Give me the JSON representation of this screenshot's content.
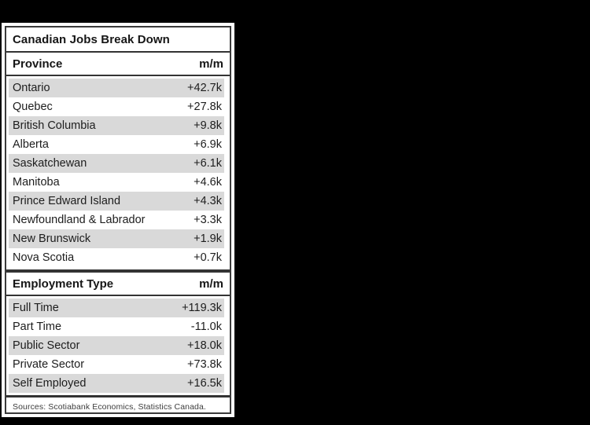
{
  "colors": {
    "page_bg": "#000000",
    "card_bg": "#ffffff",
    "border_and_rules": "#333333",
    "row_shade": "#d9d9d9",
    "text": "#1d1d1d",
    "source_text": "#3d3d3d"
  },
  "table": {
    "title": "Canadian Jobs Break Down",
    "sections": [
      {
        "header": {
          "label": "Province",
          "unit": "m/m"
        },
        "rows": [
          {
            "label": "Ontario",
            "value": "+42.7k"
          },
          {
            "label": "Quebec",
            "value": "+27.8k"
          },
          {
            "label": "British Columbia",
            "value": "+9.8k"
          },
          {
            "label": "Alberta",
            "value": "+6.9k"
          },
          {
            "label": "Saskatchewan",
            "value": "+6.1k"
          },
          {
            "label": "Manitoba",
            "value": "+4.6k"
          },
          {
            "label": "Prince Edward Island",
            "value": "+4.3k"
          },
          {
            "label": "Newfoundland & Labrador",
            "value": "+3.3k"
          },
          {
            "label": "New Brunswick",
            "value": "+1.9k"
          },
          {
            "label": "Nova Scotia",
            "value": "+0.7k"
          }
        ]
      },
      {
        "header": {
          "label": "Employment Type",
          "unit": "m/m"
        },
        "rows": [
          {
            "label": "Full Time",
            "value": "+119.3k"
          },
          {
            "label": "Part Time",
            "value": "-11.0k"
          },
          {
            "label": "Public Sector",
            "value": "+18.0k"
          },
          {
            "label": "Private Sector",
            "value": "+73.8k"
          },
          {
            "label": "Self Employed",
            "value": "+16.5k"
          }
        ]
      }
    ],
    "source_note": "Sources: Scotiabank Economics, Statistics Canada."
  },
  "chart_data": {
    "type": "table",
    "title": "Canadian Jobs Break Down",
    "sections": [
      {
        "header": [
          "Province",
          "m/m"
        ],
        "rows": [
          [
            "Ontario",
            "+42.7k"
          ],
          [
            "Quebec",
            "+27.8k"
          ],
          [
            "British Columbia",
            "+9.8k"
          ],
          [
            "Alberta",
            "+6.9k"
          ],
          [
            "Saskatchewan",
            "+6.1k"
          ],
          [
            "Manitoba",
            "+4.6k"
          ],
          [
            "Prince Edward Island",
            "+4.3k"
          ],
          [
            "Newfoundland & Labrador",
            "+3.3k"
          ],
          [
            "New Brunswick",
            "+1.9k"
          ],
          [
            "Nova Scotia",
            "+0.7k"
          ]
        ]
      },
      {
        "header": [
          "Employment Type",
          "m/m"
        ],
        "rows": [
          [
            "Full Time",
            "+119.3k"
          ],
          [
            "Part Time",
            "-11.0k"
          ],
          [
            "Public Sector",
            "+18.0k"
          ],
          [
            "Private Sector",
            "+73.8k"
          ],
          [
            "Self Employed",
            "+16.5k"
          ]
        ]
      }
    ],
    "values_thousands": {
      "Ontario": 42.7,
      "Quebec": 27.8,
      "British Columbia": 9.8,
      "Alberta": 6.9,
      "Saskatchewan": 6.1,
      "Manitoba": 4.6,
      "Prince Edward Island": 4.3,
      "Newfoundland & Labrador": 3.3,
      "New Brunswick": 1.9,
      "Nova Scotia": 0.7,
      "Full Time": 119.3,
      "Part Time": -11.0,
      "Public Sector": 18.0,
      "Private Sector": 73.8,
      "Self Employed": 16.5
    },
    "source": "Sources: Scotiabank Economics, Statistics Canada."
  }
}
